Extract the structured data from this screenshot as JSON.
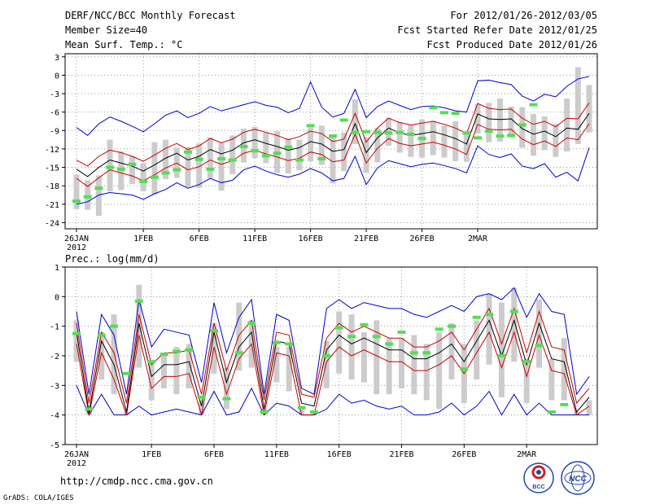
{
  "header": {
    "title": "DERF/NCC/BCC Monthly Forecast",
    "member": "Member Size=40",
    "variable": "Mean Surf. Temp.: °C",
    "period": "For 2012/01/26-2012/03/05",
    "started": "Fcst Started Refer Date 2012/01/25",
    "produced": "Fcst Produced Date 2012/01/26"
  },
  "footer": {
    "url": "http://cmdp.ncc.cma.gov.cn",
    "grads": "GrADS: COLA/IGES",
    "logo_bcc": "BCC",
    "logo_ncc": "NCC"
  },
  "colors": {
    "band": "#cccccc",
    "mean": "#000000",
    "sd": "#cc0000",
    "range": "#0000cc",
    "obs": "#55dd55",
    "grid": "#999999"
  },
  "chart_data": [
    {
      "type": "line",
      "name": "temperature",
      "title": "Mean Surf. Temp.: °C",
      "ylim": [
        -25,
        3.5
      ],
      "yticks": [
        3,
        0,
        -3,
        -6,
        -9,
        -12,
        -15,
        -18,
        -21,
        -24
      ],
      "xtick_days": [
        0,
        6,
        11,
        16,
        21,
        26,
        31,
        36
      ],
      "xtick_labels": [
        "26JAN",
        "1FEB",
        "6FEB",
        "11FEB",
        "16FEB",
        "21FEB",
        "26FEB",
        "2MAR"
      ],
      "xyear": "2012",
      "days": 40,
      "mean": [
        -15.3,
        -16.5,
        -15,
        -13.8,
        -14.3,
        -14.8,
        -15.6,
        -14.6,
        -13.5,
        -12.7,
        -13.8,
        -13.2,
        -12.1,
        -12.8,
        -12.2,
        -11,
        -10.5,
        -11.1,
        -11.6,
        -12.2,
        -11.8,
        -10.8,
        -11.2,
        -12.4,
        -12.1,
        -7.9,
        -12.6,
        -10.2,
        -8.6,
        -9.4,
        -9.8,
        -9.5,
        -9.2,
        -9.7,
        -10.3,
        -11.2,
        -6.3,
        -7.1,
        -7.2,
        -7.1,
        -8.7,
        -9.6,
        -9.1,
        -10,
        -8.6,
        -8.8,
        -6.2
      ],
      "sd_upper": [
        -13.8,
        -14.8,
        -13.2,
        -12.2,
        -12.6,
        -13.2,
        -14,
        -13,
        -11.9,
        -11.1,
        -12.1,
        -11.5,
        -10.3,
        -11,
        -10.4,
        -9.3,
        -8.8,
        -9.3,
        -9.8,
        -10.5,
        -10,
        -9.1,
        -9.5,
        -10.8,
        -10.4,
        -6.2,
        -10.9,
        -8.6,
        -7,
        -7.7,
        -8.1,
        -7.8,
        -7.5,
        -8,
        -8.6,
        -9.5,
        -4.6,
        -5.4,
        -5.6,
        -5.5,
        -7,
        -8,
        -7.5,
        -8.4,
        -7,
        -7.1,
        -4.5
      ],
      "sd_lower": [
        -16.8,
        -18.1,
        -16.7,
        -15.4,
        -15.9,
        -16.4,
        -17.2,
        -16.2,
        -15.1,
        -14.3,
        -15.4,
        -14.9,
        -13.8,
        -14.5,
        -13.9,
        -12.7,
        -12.2,
        -12.8,
        -13.3,
        -13.9,
        -13.5,
        -12.5,
        -12.9,
        -14.1,
        -13.8,
        -9.6,
        -14.3,
        -11.9,
        -10.3,
        -11.1,
        -11.5,
        -11.2,
        -10.9,
        -11.4,
        -12,
        -12.9,
        -8,
        -8.8,
        -8.9,
        -8.8,
        -10.4,
        -11.3,
        -10.7,
        -11.6,
        -10.2,
        -10.5,
        -7.9
      ],
      "max": [
        -8.5,
        -9.8,
        -7.9,
        -6.8,
        -7.5,
        -8.3,
        -9.2,
        -7.9,
        -6.5,
        -5.8,
        -6.9,
        -6.2,
        -5.1,
        -5.8,
        -5.3,
        -4.8,
        -4.3,
        -4.9,
        -5.2,
        -6.1,
        -5.4,
        -1.1,
        -5.2,
        -6.8,
        -6.2,
        -2.3,
        -6.9,
        -5.1,
        -4.2,
        -4.9,
        -5.6,
        -5.1,
        -5,
        -5.3,
        -5.8,
        -6,
        -0.9,
        -0.8,
        -1.2,
        -1.5,
        -3.4,
        -4.2,
        -3.1,
        -3.5,
        -1.8,
        -0.6,
        -0.2
      ],
      "min": [
        -21,
        -20.6,
        -19.5,
        -19.1,
        -19.3,
        -19.5,
        -20.2,
        -19.3,
        -18.6,
        -17.5,
        -18.4,
        -17.8,
        -16.8,
        -17.5,
        -17.1,
        -15.4,
        -14.8,
        -15.6,
        -16.2,
        -16.6,
        -16.1,
        -15.2,
        -15.9,
        -17.2,
        -16.8,
        -13.2,
        -17.8,
        -15.1,
        -13.9,
        -14.4,
        -14.9,
        -14.5,
        -14.3,
        -14.7,
        -15.2,
        -15.9,
        -11.5,
        -12.9,
        -13.4,
        -12.8,
        -14.8,
        -15.2,
        -14.4,
        -16.6,
        -15.8,
        -17.2,
        -11.8
      ],
      "box_top": [
        -16.2,
        -17.1,
        -16.3,
        -10.5,
        -12.4,
        -13.2,
        -14.3,
        -10.9,
        -10.5,
        -11.8,
        -11.7,
        -11.1,
        -10.1,
        -11,
        -9.8,
        -8.7,
        -8.4,
        -9.3,
        -9.1,
        -10.3,
        -10.5,
        -8.5,
        -8.2,
        -10,
        -9.3,
        -3.9,
        -10.1,
        -8.6,
        -6.9,
        -7.6,
        -8.1,
        -7.2,
        -7.4,
        -8.2,
        -7.5,
        -9.6,
        -4.7,
        -4.5,
        -3.8,
        -5.1,
        -5.2,
        -6.3,
        -6.7,
        -7.9,
        -3.8,
        1.3,
        -1.6
      ],
      "box_bottom": [
        -21.8,
        -21.9,
        -22.9,
        -18.9,
        -18.7,
        -17.7,
        -18.9,
        -19.4,
        -16.9,
        -16.7,
        -18.2,
        -18.3,
        -16.8,
        -18.8,
        -16.1,
        -14.2,
        -13.5,
        -14.3,
        -15.9,
        -16,
        -15.5,
        -14,
        -14.6,
        -17.6,
        -15.6,
        -11.2,
        -15.9,
        -14.2,
        -11.5,
        -12.6,
        -13.3,
        -13.4,
        -13,
        -13.4,
        -14,
        -14.1,
        -9.5,
        -10.9,
        -10.8,
        -10.1,
        -11.8,
        -13.1,
        -12.2,
        -13.3,
        -12.4,
        -11.2,
        -9.3
      ],
      "obs": [
        -20.5,
        -19.8,
        -18.4,
        -15,
        -15.3,
        -14.5,
        -17.3,
        -16.6,
        -15.9,
        -15.4,
        -12.5,
        -13.7,
        -15.3,
        -13.6,
        -13.8,
        -11.6,
        -12.3,
        -13.1,
        -12.7,
        -11.7,
        -13.8,
        -8.2,
        -13.6,
        -9.9,
        -7.3,
        -9.3,
        -9.2,
        -9.3,
        -9.4,
        -9.3,
        -9.6,
        -10.3,
        -5.3,
        -6.1,
        -6.2,
        -9.4,
        -10.2,
        -9.1,
        -9.9,
        -9.8,
        -8.1,
        -4.8
      ],
      "obs_days": [
        0,
        1,
        2,
        3,
        4,
        5,
        6,
        7,
        8,
        9,
        10,
        11,
        12,
        13,
        14,
        15,
        16,
        17,
        18,
        19,
        20,
        21,
        22,
        23,
        24,
        25,
        26,
        27,
        28,
        29,
        30,
        31,
        32,
        33,
        34,
        35,
        36,
        37,
        38,
        39,
        40,
        41
      ]
    },
    {
      "type": "line",
      "name": "precipitation",
      "title": "Prec.: log(mm/d)",
      "ylim": [
        -5,
        1
      ],
      "yticks": [
        1,
        0,
        -1,
        -2,
        -3,
        -4,
        -5
      ],
      "xtick_days": [
        0,
        6,
        11,
        16,
        21,
        26,
        31,
        36
      ],
      "xtick_labels": [
        "26JAN",
        "1FEB",
        "6FEB",
        "11FEB",
        "16FEB",
        "21FEB",
        "26FEB",
        "2MAR"
      ],
      "xyear": "2012",
      "days": 40,
      "mean": [
        -1.2,
        -3.9,
        -1.5,
        -2.3,
        -3.9,
        -0.9,
        -2.7,
        -2.3,
        -2.3,
        -2.2,
        -3.7,
        -1.2,
        -2.9,
        -1.7,
        -1.2,
        -3.8,
        -1.5,
        -1.6,
        -3.6,
        -3.7,
        -1.8,
        -1.3,
        -1.6,
        -1.4,
        -1.6,
        -1.8,
        -1.8,
        -2.1,
        -2.1,
        -1.9,
        -1.6,
        -2.2,
        -1.5,
        -0.8,
        -2.0,
        -0.8,
        -2.3,
        -0.9,
        -2.1,
        -2.2,
        -3.9,
        -3.4
      ],
      "sd_upper": [
        -0.9,
        -3.6,
        -1.2,
        -1.9,
        -3.6,
        -0.6,
        -2.3,
        -1.9,
        -1.9,
        -1.8,
        -3.3,
        -0.9,
        -2.5,
        -1.3,
        -0.8,
        -3.5,
        -1.2,
        -1.3,
        -3.3,
        -3.4,
        -1.4,
        -0.9,
        -1.2,
        -1.0,
        -1.2,
        -1.4,
        -1.4,
        -1.7,
        -1.7,
        -1.5,
        -1.2,
        -1.8,
        -1.1,
        -0.4,
        -1.6,
        -0.4,
        -1.9,
        -0.5,
        -1.7,
        -1.8,
        -3.6,
        -3.1
      ],
      "sd_lower": [
        -1.6,
        -4,
        -1.9,
        -2.8,
        -4,
        -1.3,
        -3.1,
        -2.7,
        -2.7,
        -2.6,
        -4,
        -1.7,
        -3.3,
        -2.1,
        -1.6,
        -4,
        -1.9,
        -2,
        -4,
        -4,
        -2.2,
        -1.7,
        -2,
        -1.8,
        -2,
        -2.2,
        -2.2,
        -2.5,
        -2.5,
        -2.3,
        -2,
        -2.6,
        -1.9,
        -1.2,
        -2.4,
        -1.2,
        -2.7,
        -1.3,
        -2.5,
        -2.6,
        -4,
        -3.7
      ],
      "max": [
        -0.5,
        -3.3,
        -0.6,
        -1.3,
        -3.3,
        -0.1,
        -1.7,
        -1.1,
        -1.2,
        -1.3,
        -2.9,
        -0.2,
        -1.9,
        -0.7,
        -0.1,
        -3.3,
        -0.6,
        -0.8,
        -3.1,
        -3.3,
        -0.4,
        -0.1,
        -0.4,
        -0.2,
        -0.3,
        -0.4,
        -0.4,
        -0.6,
        -0.7,
        -0.5,
        -0.3,
        -0.5,
        0,
        0.1,
        -0.1,
        0.3,
        -0.7,
        0.1,
        -0.5,
        -0.6,
        -3.3,
        -2.7
      ],
      "min": [
        -3,
        -4,
        -3.3,
        -4,
        -4,
        -3.7,
        -4,
        -3.9,
        -3.8,
        -3.9,
        -4,
        -3.2,
        -4,
        -3.9,
        -3.1,
        -4,
        -3.6,
        -3.7,
        -4,
        -4,
        -3.8,
        -3.3,
        -3.6,
        -3.5,
        -3.7,
        -3.8,
        -3.7,
        -4,
        -4,
        -3.9,
        -3.6,
        -4,
        -3.7,
        -3.2,
        -4,
        -3.3,
        -4,
        -3.6,
        -4,
        -4,
        -4,
        -4
      ],
      "box_top": [
        -0.8,
        -3.7,
        -1.2,
        -0.6,
        -3.9,
        0.4,
        -2.2,
        -1.9,
        -1.7,
        -1.6,
        -3.5,
        -0.9,
        -2.4,
        -0.2,
        -0.8,
        -3.8,
        -1.7,
        -1.7,
        -3.8,
        -3.9,
        -1.5,
        -0.5,
        -0.6,
        -1.2,
        -0.8,
        -1.4,
        -1.4,
        -1.3,
        -1.6,
        -1.2,
        -0.9,
        -1.6,
        -0.8,
        0.1,
        -0.2,
        0.3,
        -2.1,
        -0.1,
        -2.1,
        -1.4,
        -3.9,
        -3.5
      ],
      "box_bottom": [
        -2.2,
        -4,
        -2.8,
        -3.3,
        -4,
        -2.4,
        -3.5,
        -3.1,
        -3.3,
        -3.1,
        -4,
        -2.6,
        -3.8,
        -2.5,
        -2.4,
        -4,
        -2.9,
        -3.2,
        -4,
        -4,
        -3.1,
        -2.6,
        -2.8,
        -2.9,
        -3.3,
        -3.3,
        -3.1,
        -3.3,
        -3.5,
        -3.8,
        -2.8,
        -3.6,
        -2.8,
        -2.3,
        -3.4,
        -2.2,
        -3.6,
        -2.4,
        -3.5,
        -3.5,
        -4,
        -4
      ],
      "obs": [
        -1.25,
        -3.8,
        -1.3,
        -1,
        -2.6,
        -0.15,
        -2.2,
        -1.95,
        -1.85,
        -1.8,
        -3.4,
        -1.15,
        -3.45,
        -1.9,
        -0.9,
        -3.9,
        -1.55,
        -1.6,
        -3.75,
        -3.9,
        -2,
        -1.05,
        -1.35,
        -0.95,
        -1.35,
        -1.6,
        -1.2,
        -1.9,
        -1.9,
        -1.1,
        -1,
        -2.45,
        -0.7,
        -0.6,
        -2,
        -0.5,
        -2.2,
        -1.65,
        -3.9,
        -3.65
      ],
      "obs_days": [
        0,
        1,
        2,
        3,
        4,
        5,
        6,
        7,
        8,
        9,
        10,
        11,
        12,
        13,
        14,
        15,
        16,
        17,
        18,
        19,
        20,
        21,
        22,
        23,
        24,
        25,
        26,
        27,
        28,
        29,
        30,
        31,
        32,
        33,
        34,
        35,
        36,
        37,
        38,
        39
      ]
    }
  ]
}
